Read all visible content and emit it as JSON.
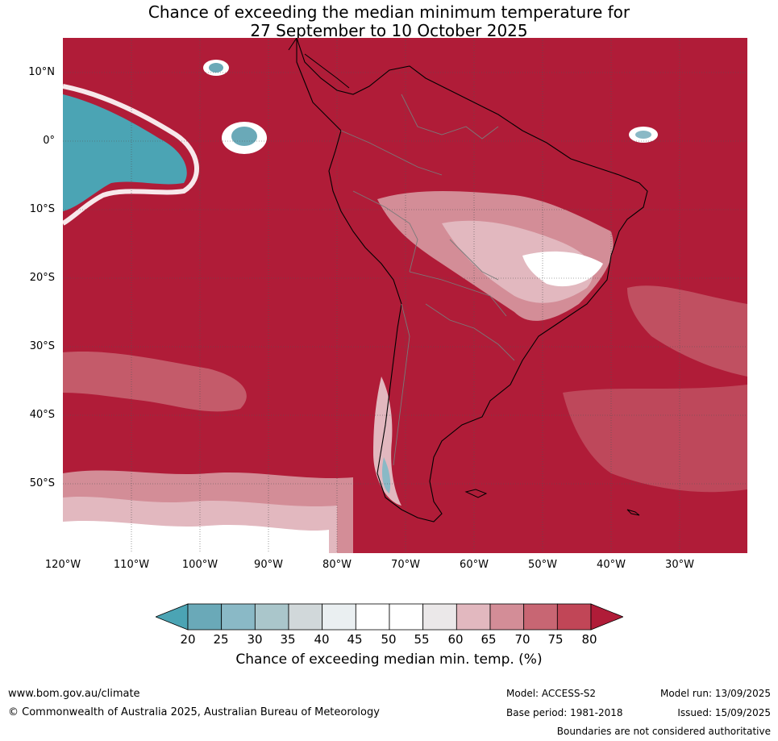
{
  "title": {
    "line1": "Chance of exceeding the median minimum temperature for",
    "line2": "27 September to 10 October 2025"
  },
  "map": {
    "ocean_land_base_color": "#b01c38",
    "lat_labels": [
      "10°N",
      "0°",
      "10°S",
      "20°S",
      "30°S",
      "40°S",
      "50°S"
    ],
    "lon_labels": [
      "120°W",
      "110°W",
      "100°W",
      "90°W",
      "80°W",
      "70°W",
      "60°W",
      "50°W",
      "40°W",
      "30°W"
    ]
  },
  "colorbar": {
    "ticks": [
      "20",
      "25",
      "30",
      "35",
      "40",
      "45",
      "50",
      "55",
      "60",
      "65",
      "70",
      "75",
      "80"
    ],
    "colors": [
      "#4ba4b4",
      "#6aa9b8",
      "#8ab9c6",
      "#aac6cb",
      "#d1d8da",
      "#eaeff1",
      "#ffffff",
      "#ffffff",
      "#ebe8e9",
      "#e2b8bf",
      "#d38d97",
      "#c86673",
      "#c14657",
      "#b01c38"
    ],
    "title": "Chance of exceeding median min. temp. (%)"
  },
  "footer": {
    "website": "www.bom.gov.au/climate",
    "copyright": "© Commonwealth of Australia 2025, Australian Bureau of Meteorology",
    "model": "Model: ACCESS-S2",
    "base_period": "Base period: 1981-2018",
    "model_run": "Model run: 13/09/2025",
    "issued": "Issued: 15/09/2025",
    "boundaries": "Boundaries are not considered authoritative"
  }
}
